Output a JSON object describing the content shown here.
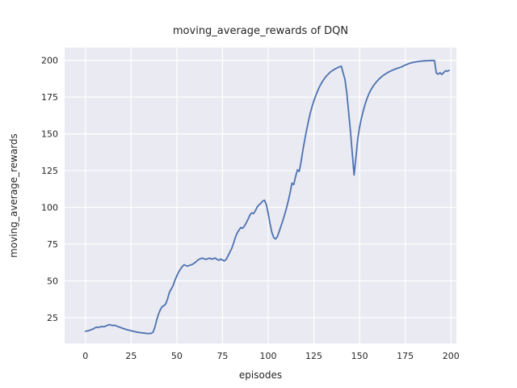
{
  "chart_data": {
    "type": "line",
    "title": "moving_average_rewards of DQN",
    "xlabel": "episodes",
    "ylabel": "moving_average_rewards",
    "x_ticks": [
      0,
      25,
      50,
      75,
      100,
      125,
      150,
      175,
      200
    ],
    "y_ticks": [
      25,
      50,
      75,
      100,
      125,
      150,
      175,
      200
    ],
    "xlim": [
      -11.4,
      203
    ],
    "ylim": [
      7.4,
      208.6
    ],
    "grid": true,
    "legend": "none",
    "style": {
      "plot_bg": "#EAEAF2",
      "grid_color": "#FFFFFF",
      "line_color": "#4C72B0",
      "text_color": "#262626",
      "figure_bg": "#FFFFFF"
    },
    "series": [
      {
        "name": "DQN",
        "points": [
          [
            0,
            15.8
          ],
          [
            1,
            16
          ],
          [
            2,
            16.2
          ],
          [
            3,
            16.8
          ],
          [
            4,
            17.2
          ],
          [
            5,
            17.9
          ],
          [
            6,
            18.6
          ],
          [
            7,
            18.3
          ],
          [
            8,
            18.7
          ],
          [
            9,
            19
          ],
          [
            10,
            18.8
          ],
          [
            11,
            19.2
          ],
          [
            12,
            19.8
          ],
          [
            13,
            20.3
          ],
          [
            14,
            19.9
          ],
          [
            15,
            19.6
          ],
          [
            16,
            19.9
          ],
          [
            17,
            19.3
          ],
          [
            18,
            18.8
          ],
          [
            19,
            18.4
          ],
          [
            20,
            17.9
          ],
          [
            22,
            17.1
          ],
          [
            24,
            16.4
          ],
          [
            26,
            15.8
          ],
          [
            28,
            15.2
          ],
          [
            30,
            14.8
          ],
          [
            32,
            14.5
          ],
          [
            34,
            14.2
          ],
          [
            36,
            14.3
          ],
          [
            37,
            15.2
          ],
          [
            38,
            18.5
          ],
          [
            39,
            23.5
          ],
          [
            40,
            27.5
          ],
          [
            41,
            30.5
          ],
          [
            42,
            32.5
          ],
          [
            43,
            33.2
          ],
          [
            44,
            34.5
          ],
          [
            45,
            38
          ],
          [
            46,
            42.5
          ],
          [
            47,
            44.5
          ],
          [
            48,
            47
          ],
          [
            49,
            50.5
          ],
          [
            50,
            53.5
          ],
          [
            51,
            56
          ],
          [
            52,
            58
          ],
          [
            53,
            59.8
          ],
          [
            54,
            61
          ],
          [
            55,
            60.4
          ],
          [
            56,
            60
          ],
          [
            57,
            60.6
          ],
          [
            58,
            61
          ],
          [
            59,
            61.6
          ],
          [
            60,
            62.5
          ],
          [
            61,
            63.6
          ],
          [
            62,
            64.6
          ],
          [
            63,
            65.1
          ],
          [
            64,
            65.5
          ],
          [
            65,
            65
          ],
          [
            66,
            64.6
          ],
          [
            67,
            65.1
          ],
          [
            68,
            65.5
          ],
          [
            69,
            64.8
          ],
          [
            70,
            65.1
          ],
          [
            71,
            65.6
          ],
          [
            72,
            64.6
          ],
          [
            73,
            64.1
          ],
          [
            74,
            64.8
          ],
          [
            75,
            64.2
          ],
          [
            76,
            63.6
          ],
          [
            77,
            64.6
          ],
          [
            78,
            67
          ],
          [
            79,
            69.5
          ],
          [
            80,
            72
          ],
          [
            81,
            75.5
          ],
          [
            82,
            79.5
          ],
          [
            83,
            82.5
          ],
          [
            84,
            84.5
          ],
          [
            85,
            86.3
          ],
          [
            86,
            85.8
          ],
          [
            87,
            87.3
          ],
          [
            88,
            89.5
          ],
          [
            89,
            92
          ],
          [
            90,
            94.8
          ],
          [
            91,
            96.3
          ],
          [
            92,
            95.8
          ],
          [
            93,
            97.8
          ],
          [
            94,
            100.3
          ],
          [
            95,
            101.8
          ],
          [
            96,
            102.8
          ],
          [
            97,
            104.3
          ],
          [
            98,
            104.8
          ],
          [
            99,
            101.8
          ],
          [
            100,
            96
          ],
          [
            101,
            89
          ],
          [
            102,
            83
          ],
          [
            103,
            79.5
          ],
          [
            104,
            78.5
          ],
          [
            105,
            80
          ],
          [
            106,
            83.5
          ],
          [
            107,
            87.3
          ],
          [
            108,
            91
          ],
          [
            109,
            95
          ],
          [
            110,
            99.5
          ],
          [
            111,
            104.5
          ],
          [
            112,
            110
          ],
          [
            113,
            116.5
          ],
          [
            114,
            115.5
          ],
          [
            115,
            121
          ],
          [
            116,
            125.5
          ],
          [
            117,
            124.5
          ],
          [
            118,
            131
          ],
          [
            119,
            139
          ],
          [
            120,
            146
          ],
          [
            121,
            152.5
          ],
          [
            122,
            158.5
          ],
          [
            123,
            164
          ],
          [
            124,
            168.5
          ],
          [
            125,
            172.5
          ],
          [
            126,
            176
          ],
          [
            127,
            179
          ],
          [
            128,
            181.8
          ],
          [
            129,
            184.2
          ],
          [
            130,
            186.2
          ],
          [
            131,
            188
          ],
          [
            132,
            189.5
          ],
          [
            133,
            190.8
          ],
          [
            134,
            192
          ],
          [
            135,
            192.9
          ],
          [
            136,
            193.7
          ],
          [
            137,
            194.4
          ],
          [
            138,
            195
          ],
          [
            139,
            195.6
          ],
          [
            140,
            196
          ],
          [
            141,
            191.5
          ],
          [
            142,
            187
          ],
          [
            143,
            178
          ],
          [
            144,
            165
          ],
          [
            145,
            152
          ],
          [
            146,
            137
          ],
          [
            147,
            122
          ],
          [
            148,
            134
          ],
          [
            149,
            146.5
          ],
          [
            150,
            154.5
          ],
          [
            151,
            160.5
          ],
          [
            152,
            165.5
          ],
          [
            153,
            170
          ],
          [
            154,
            173.8
          ],
          [
            155,
            176.9
          ],
          [
            156,
            179.5
          ],
          [
            157,
            181.6
          ],
          [
            158,
            183.4
          ],
          [
            159,
            185
          ],
          [
            160,
            186.4
          ],
          [
            161,
            187.7
          ],
          [
            162,
            188.8
          ],
          [
            163,
            189.8
          ],
          [
            164,
            190.6
          ],
          [
            165,
            191.4
          ],
          [
            166,
            192.1
          ],
          [
            167,
            192.7
          ],
          [
            168,
            193.3
          ],
          [
            169,
            193.8
          ],
          [
            170,
            194.3
          ],
          [
            171,
            194.7
          ],
          [
            172,
            195.1
          ],
          [
            173,
            195.6
          ],
          [
            174,
            196.2
          ],
          [
            175,
            196.8
          ],
          [
            176,
            197.3
          ],
          [
            177,
            197.8
          ],
          [
            178,
            198.2
          ],
          [
            179,
            198.5
          ],
          [
            180,
            198.8
          ],
          [
            182,
            199.2
          ],
          [
            184,
            199.5
          ],
          [
            186,
            199.7
          ],
          [
            188,
            199.8
          ],
          [
            190,
            199.9
          ],
          [
            191,
            199.9
          ],
          [
            192,
            191.3
          ],
          [
            193,
            190.6
          ],
          [
            194,
            191.6
          ],
          [
            195,
            190.4
          ],
          [
            196,
            191.6
          ],
          [
            197,
            192.9
          ],
          [
            198,
            192.6
          ],
          [
            199,
            193.2
          ]
        ]
      }
    ]
  }
}
